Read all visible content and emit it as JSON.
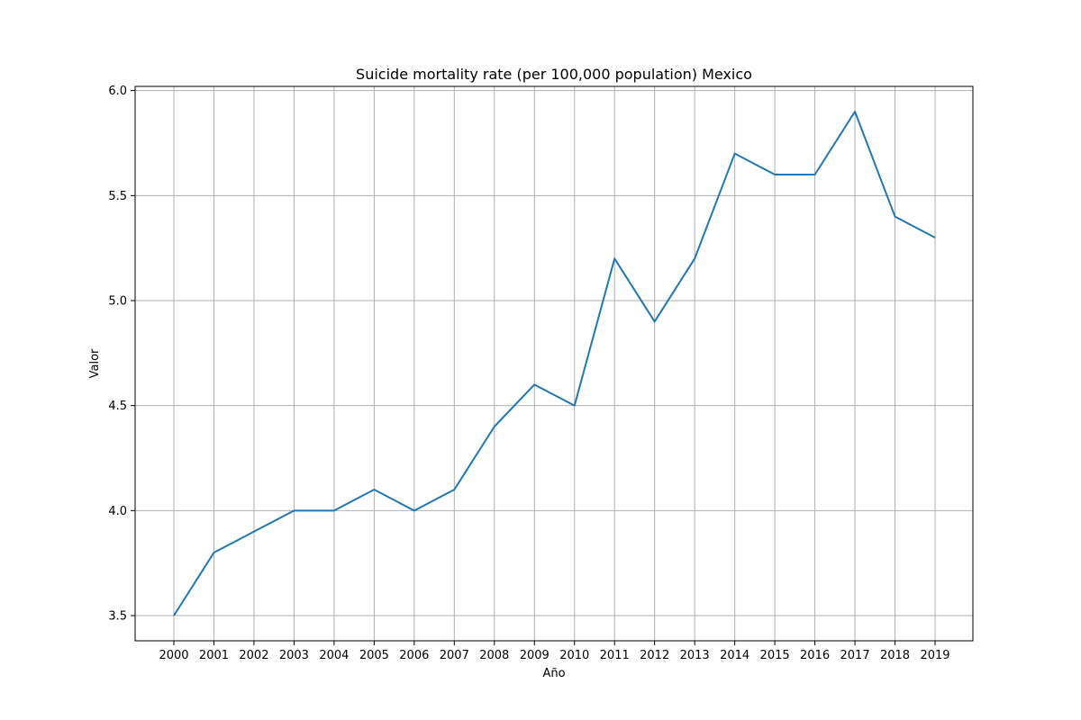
{
  "chart_data": {
    "type": "line",
    "title": "Suicide mortality rate (per 100,000 population) Mexico",
    "xlabel": "Año",
    "ylabel": "Valor",
    "x": [
      "2000",
      "2001",
      "2002",
      "2003",
      "2004",
      "2005",
      "2006",
      "2007",
      "2008",
      "2009",
      "2010",
      "2011",
      "2012",
      "2013",
      "2014",
      "2015",
      "2016",
      "2017",
      "2018",
      "2019"
    ],
    "series": [
      {
        "values": [
          3.5,
          3.8,
          3.9,
          4.0,
          4.0,
          4.1,
          4.0,
          4.1,
          4.4,
          4.6,
          4.5,
          5.2,
          4.9,
          5.2,
          5.7,
          5.6,
          5.6,
          5.9,
          5.4,
          5.3
        ],
        "color": "#1f77b4"
      }
    ],
    "yticks": [
      "3.5",
      "4.0",
      "4.5",
      "5.0",
      "5.5",
      "6.0"
    ],
    "ylim": [
      3.38,
      6.02
    ],
    "grid": true,
    "legend": "none"
  }
}
